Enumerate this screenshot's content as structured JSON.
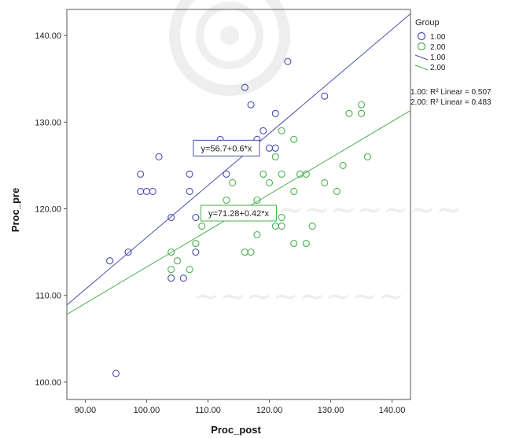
{
  "chart_data": {
    "type": "scatter",
    "title": "",
    "xlabel": "Proc_post",
    "ylabel": "Proc_pre",
    "xlim": [
      87,
      143
    ],
    "ylim": [
      98,
      143
    ],
    "x_ticks": [
      "90.00",
      "100.00",
      "110.00",
      "120.00",
      "130.00",
      "140.00"
    ],
    "y_ticks": [
      "100.00",
      "110.00",
      "120.00",
      "130.00",
      "140.00"
    ],
    "grid": false,
    "legend": {
      "title": "Group",
      "placement": "top-right, outside plot",
      "marker_entries": [
        "1.00",
        "2.00"
      ],
      "line_entries": [
        "1.00",
        "2.00"
      ],
      "r2_labels": [
        "1.00: R² Linear = 0.507",
        "2.00: R² Linear = 0.483"
      ]
    },
    "series": [
      {
        "name": "1.00",
        "color": "#4a4fa8",
        "fit": {
          "intercept": 56.7,
          "slope": 0.6,
          "equation": "y=56.7+0.6*x"
        },
        "points": [
          [
            94,
            114
          ],
          [
            95,
            101
          ],
          [
            97,
            115
          ],
          [
            99,
            122
          ],
          [
            99,
            124
          ],
          [
            100,
            122
          ],
          [
            101,
            122
          ],
          [
            102,
            126
          ],
          [
            104,
            119
          ],
          [
            104,
            112
          ],
          [
            106,
            112
          ],
          [
            107,
            122
          ],
          [
            107,
            124
          ],
          [
            108,
            115
          ],
          [
            108,
            119
          ],
          [
            112,
            128
          ],
          [
            113,
            124
          ],
          [
            116,
            134
          ],
          [
            117,
            132
          ],
          [
            118,
            128
          ],
          [
            119,
            129
          ],
          [
            120,
            127
          ],
          [
            121,
            131
          ],
          [
            121,
            127
          ],
          [
            123,
            137
          ],
          [
            129,
            133
          ]
        ]
      },
      {
        "name": "2.00",
        "color": "#4caf50",
        "fit": {
          "intercept": 71.28,
          "slope": 0.42,
          "equation": "y=71.28+0.42*x"
        },
        "points": [
          [
            104,
            115
          ],
          [
            104,
            113
          ],
          [
            105,
            114
          ],
          [
            107,
            113
          ],
          [
            108,
            116
          ],
          [
            109,
            118
          ],
          [
            113,
            121
          ],
          [
            114,
            123
          ],
          [
            116,
            115
          ],
          [
            117,
            115
          ],
          [
            118,
            121
          ],
          [
            118,
            117
          ],
          [
            119,
            124
          ],
          [
            119,
            120
          ],
          [
            120,
            123
          ],
          [
            121,
            126
          ],
          [
            121,
            118
          ],
          [
            122,
            118
          ],
          [
            122,
            119
          ],
          [
            122,
            124
          ],
          [
            122,
            129
          ],
          [
            124,
            128
          ],
          [
            124,
            122
          ],
          [
            124,
            116
          ],
          [
            125,
            124
          ],
          [
            126,
            124
          ],
          [
            126,
            116
          ],
          [
            127,
            118
          ],
          [
            129,
            123
          ],
          [
            131,
            122
          ],
          [
            132,
            125
          ],
          [
            133,
            131
          ],
          [
            135,
            131
          ],
          [
            135,
            132
          ],
          [
            136,
            126
          ]
        ]
      }
    ]
  }
}
